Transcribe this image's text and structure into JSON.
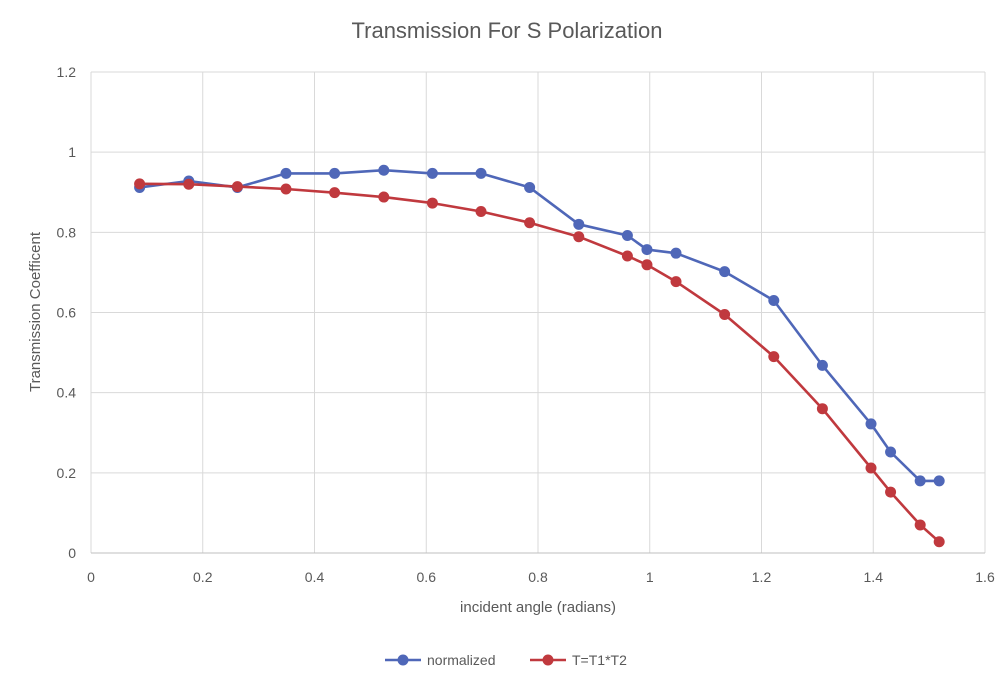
{
  "chart_data": {
    "type": "line",
    "title": "Transmission For S Polarization",
    "xlabel": "incident angle (radians)",
    "ylabel": "Transmission Coefficent",
    "xlim": [
      0,
      1.6
    ],
    "ylim": [
      0,
      1.2
    ],
    "x_ticks": [
      "0",
      "0.2",
      "0.4",
      "0.6",
      "0.8",
      "1",
      "1.2",
      "1.4",
      "1.6"
    ],
    "y_ticks": [
      "0",
      "0.2",
      "0.4",
      "0.6",
      "0.8",
      "1",
      "1.2"
    ],
    "grid": true,
    "legend_position": "bottom",
    "series": [
      {
        "name": "normalized",
        "color": "#4f67b8",
        "x": [
          0.087,
          0.175,
          0.262,
          0.349,
          0.436,
          0.524,
          0.611,
          0.698,
          0.785,
          0.873,
          0.96,
          0.995,
          1.047,
          1.134,
          1.222,
          1.309,
          1.396,
          1.431,
          1.484,
          1.518
        ],
        "y": [
          0.912,
          0.928,
          0.912,
          0.947,
          0.947,
          0.955,
          0.947,
          0.947,
          0.912,
          0.82,
          0.792,
          0.757,
          0.748,
          0.702,
          0.63,
          0.468,
          0.322,
          0.252,
          0.18,
          0.18
        ]
      },
      {
        "name": "T=T1*T2",
        "color": "#c0393e",
        "x": [
          0.087,
          0.175,
          0.262,
          0.349,
          0.436,
          0.524,
          0.611,
          0.698,
          0.785,
          0.873,
          0.96,
          0.995,
          1.047,
          1.134,
          1.222,
          1.309,
          1.396,
          1.431,
          1.484,
          1.518
        ],
        "y": [
          0.921,
          0.92,
          0.914,
          0.908,
          0.899,
          0.888,
          0.873,
          0.852,
          0.824,
          0.789,
          0.741,
          0.719,
          0.677,
          0.595,
          0.49,
          0.36,
          0.212,
          0.152,
          0.07,
          0.028
        ]
      }
    ]
  }
}
